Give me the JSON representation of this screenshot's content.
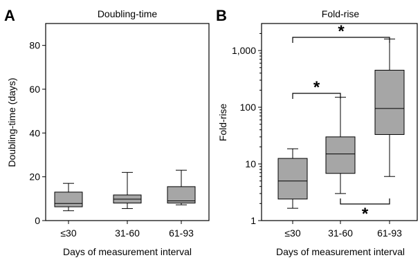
{
  "chart_data": [
    {
      "panel": "A",
      "type": "box",
      "title": "Doubling-time",
      "xlabel": "Days of measurement interval",
      "ylabel": "Doubling-time (days)",
      "ylim": [
        0,
        90
      ],
      "yscale": "linear",
      "yticks": [
        0,
        20,
        40,
        60,
        80
      ],
      "ytick_labels": [
        "0",
        "20",
        "40",
        "60",
        "80"
      ],
      "categories": [
        "≤30",
        "31-60",
        "61-93"
      ],
      "boxes": [
        {
          "min": 4.5,
          "q1": 6.3,
          "median": 7.8,
          "q3": 13,
          "max": 17
        },
        {
          "min": 5.5,
          "q1": 8,
          "median": 9.8,
          "q3": 11.7,
          "max": 22
        },
        {
          "min": 7.2,
          "q1": 8,
          "median": 9,
          "q3": 15.5,
          "max": 23
        }
      ],
      "grid": false
    },
    {
      "panel": "B",
      "type": "box",
      "title": "Fold-rise",
      "xlabel": "Days of measurement interval",
      "ylabel": "Fold-rise",
      "ylim": [
        1,
        3000
      ],
      "yscale": "log",
      "yticks": [
        1,
        10,
        100,
        1000
      ],
      "ytick_labels": [
        "1",
        "10",
        "100",
        "1,000"
      ],
      "categories": [
        "≤30",
        "31-60",
        "61-93"
      ],
      "boxes": [
        {
          "min": 1.65,
          "q1": 2.4,
          "median": 5,
          "q3": 12.5,
          "max": 18.5
        },
        {
          "min": 3,
          "q1": 6.8,
          "median": 15,
          "q3": 30,
          "max": 150
        },
        {
          "min": 6,
          "q1": 33,
          "median": 95,
          "q3": 450,
          "max": 1600
        }
      ],
      "significance": [
        {
          "from": 0,
          "to": 2,
          "label": "*",
          "position": "top"
        },
        {
          "from": 0,
          "to": 1,
          "label": "*",
          "position": "top"
        },
        {
          "from": 1,
          "to": 2,
          "label": "*",
          "position": "bottom"
        }
      ],
      "grid": false
    }
  ]
}
